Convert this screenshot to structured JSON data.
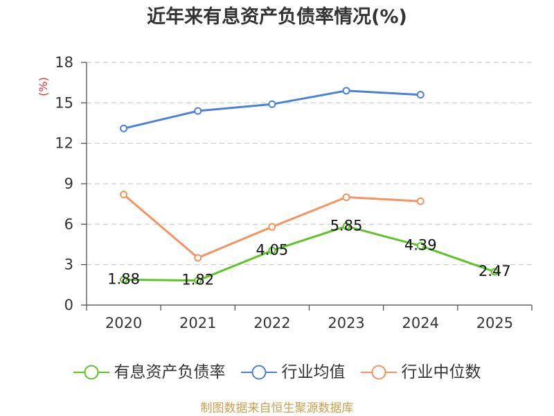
{
  "footer": "制图数据来自恒生聚源数据库",
  "chart_data": {
    "type": "line",
    "title": "近年来有息资产负债率情况(%)",
    "ylabel": "(%)",
    "categories": [
      "2020",
      "2021",
      "2022",
      "2023",
      "2024",
      "2025"
    ],
    "ylim": [
      0,
      18
    ],
    "yticks": [
      0,
      3,
      6,
      9,
      12,
      15,
      18
    ],
    "grid": true,
    "legend": "bottom",
    "series": [
      {
        "name": "有息资产负债率",
        "values": [
          1.88,
          1.82,
          4.05,
          5.85,
          4.39,
          2.47
        ],
        "color": "#5cc424",
        "show_labels": true
      },
      {
        "name": "行业均值",
        "values": [
          13.1,
          14.4,
          14.9,
          15.9,
          15.6,
          null
        ],
        "color": "#4a80d9",
        "show_labels": false
      },
      {
        "name": "行业中位数",
        "values": [
          8.2,
          3.5,
          5.8,
          8.0,
          7.7,
          null
        ],
        "color": "#f6925f",
        "show_labels": false
      }
    ]
  }
}
